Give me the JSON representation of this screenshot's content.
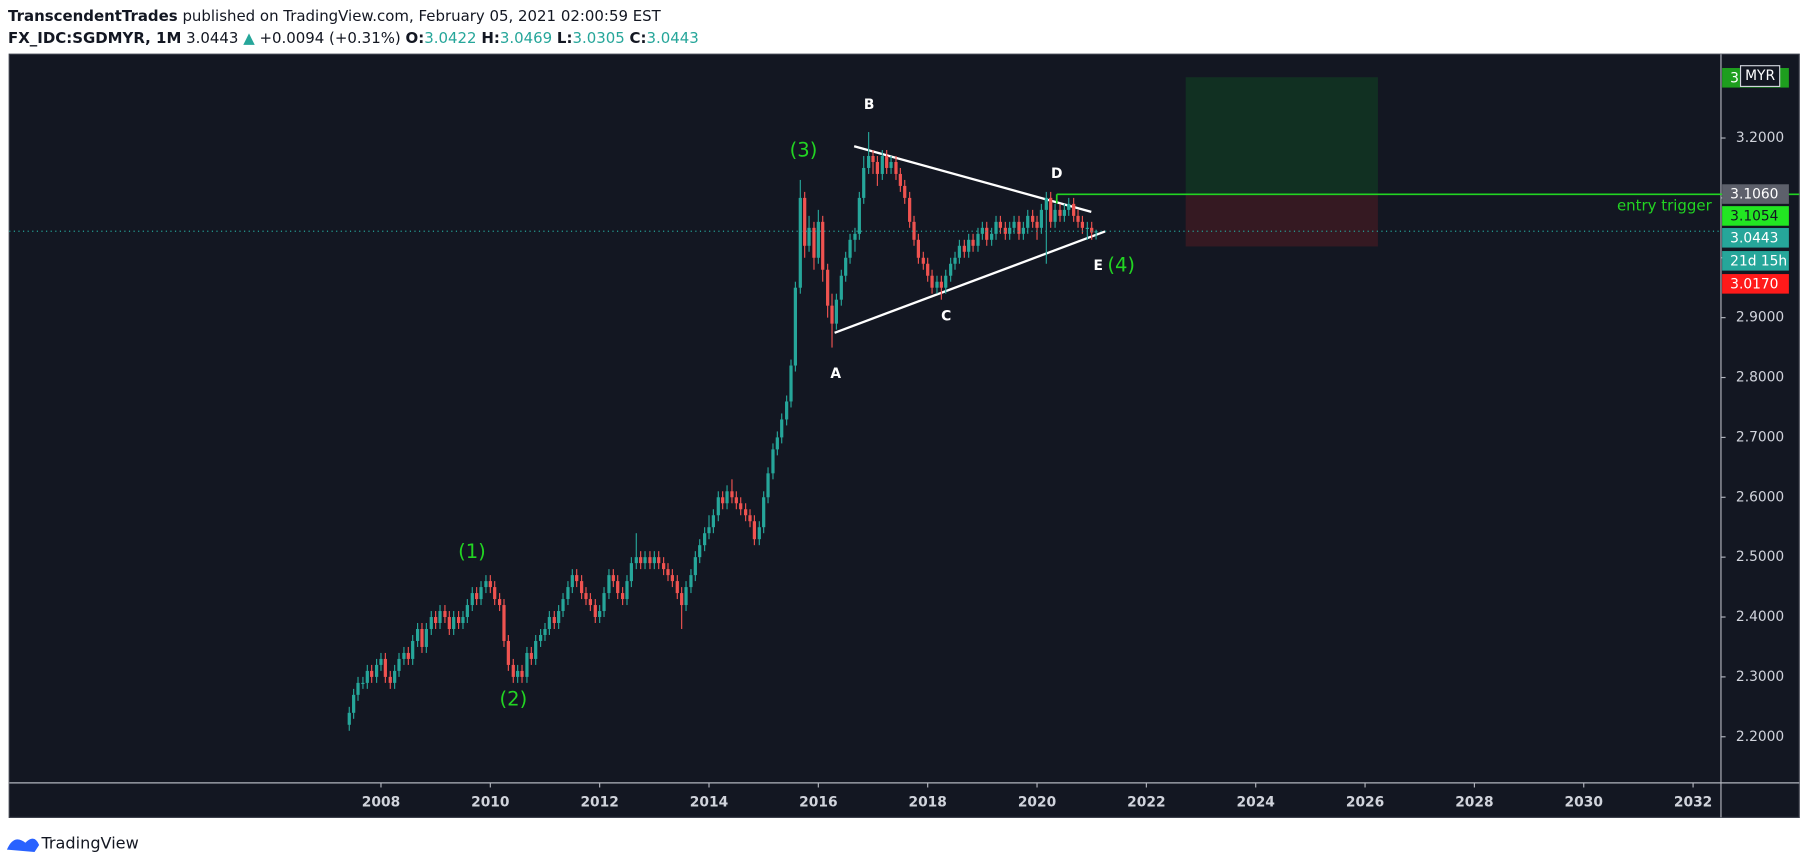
{
  "header": {
    "author": "TranscendentTrades",
    "published": "published on TradingView.com, February 05, 2021 02:00:59 EST",
    "symbol": "FX_IDC:SGDMYR, 1M",
    "price": 3.0443,
    "change": "+0.0094 (+0.31%)",
    "ohlc": [
      {
        "label": "O:",
        "value": 3.0422
      },
      {
        "label": "H:",
        "value": 3.0469
      },
      {
        "label": "L:",
        "value": 3.0305
      },
      {
        "label": "C:",
        "value": 3.0443
      }
    ]
  },
  "chart_data": {
    "type": "candlestick",
    "up_color": "#26a69a",
    "down_color": "#ef5350",
    "x": [
      2007.42,
      2007.5,
      2007.58,
      2007.67,
      2007.75,
      2007.83,
      2007.92,
      2008,
      2008.08,
      2008.17,
      2008.25,
      2008.33,
      2008.42,
      2008.5,
      2008.58,
      2008.67,
      2008.75,
      2008.83,
      2008.92,
      2009,
      2009.08,
      2009.17,
      2009.25,
      2009.33,
      2009.42,
      2009.5,
      2009.58,
      2009.67,
      2009.75,
      2009.83,
      2009.92,
      2010,
      2010.08,
      2010.17,
      2010.25,
      2010.33,
      2010.42,
      2010.5,
      2010.58,
      2010.67,
      2010.75,
      2010.83,
      2010.92,
      2011,
      2011.08,
      2011.17,
      2011.25,
      2011.33,
      2011.42,
      2011.5,
      2011.58,
      2011.67,
      2011.75,
      2011.83,
      2011.92,
      2012,
      2012.08,
      2012.17,
      2012.25,
      2012.33,
      2012.42,
      2012.5,
      2012.58,
      2012.67,
      2012.75,
      2012.83,
      2012.92,
      2013,
      2013.08,
      2013.17,
      2013.25,
      2013.33,
      2013.42,
      2013.5,
      2013.58,
      2013.67,
      2013.75,
      2013.83,
      2013.92,
      2014,
      2014.08,
      2014.17,
      2014.25,
      2014.33,
      2014.42,
      2014.5,
      2014.58,
      2014.67,
      2014.75,
      2014.83,
      2014.92,
      2015,
      2015.08,
      2015.17,
      2015.25,
      2015.33,
      2015.42,
      2015.5,
      2015.58,
      2015.67,
      2015.75,
      2015.83,
      2015.92,
      2016,
      2016.08,
      2016.17,
      2016.25,
      2016.33,
      2016.42,
      2016.5,
      2016.58,
      2016.67,
      2016.75,
      2016.83,
      2016.92,
      2017,
      2017.08,
      2017.17,
      2017.25,
      2017.33,
      2017.42,
      2017.5,
      2017.58,
      2017.67,
      2017.75,
      2017.83,
      2017.92,
      2018,
      2018.08,
      2018.17,
      2018.25,
      2018.33,
      2018.42,
      2018.5,
      2018.58,
      2018.67,
      2018.75,
      2018.83,
      2018.92,
      2019,
      2019.08,
      2019.17,
      2019.25,
      2019.33,
      2019.42,
      2019.5,
      2019.58,
      2019.67,
      2019.75,
      2019.83,
      2019.92,
      2020,
      2020.08,
      2020.17,
      2020.25,
      2020.33,
      2020.42,
      2020.5,
      2020.58,
      2020.67,
      2020.75,
      2020.83,
      2020.92,
      2021,
      2021.08
    ],
    "candles": [
      [
        2.22,
        2.25,
        2.21,
        2.24
      ],
      [
        2.24,
        2.28,
        2.23,
        2.27
      ],
      [
        2.27,
        2.3,
        2.26,
        2.29
      ],
      [
        2.29,
        2.3,
        2.28,
        2.29
      ],
      [
        2.29,
        2.32,
        2.28,
        2.31
      ],
      [
        2.31,
        2.32,
        2.29,
        2.3
      ],
      [
        2.3,
        2.33,
        2.29,
        2.32
      ],
      [
        2.32,
        2.34,
        2.31,
        2.33
      ],
      [
        2.33,
        2.34,
        2.29,
        2.3
      ],
      [
        2.3,
        2.31,
        2.28,
        2.29
      ],
      [
        2.29,
        2.32,
        2.28,
        2.31
      ],
      [
        2.31,
        2.34,
        2.3,
        2.33
      ],
      [
        2.33,
        2.35,
        2.32,
        2.34
      ],
      [
        2.34,
        2.35,
        2.32,
        2.33
      ],
      [
        2.33,
        2.37,
        2.32,
        2.36
      ],
      [
        2.36,
        2.39,
        2.35,
        2.38
      ],
      [
        2.38,
        2.39,
        2.34,
        2.35
      ],
      [
        2.35,
        2.39,
        2.34,
        2.38
      ],
      [
        2.38,
        2.41,
        2.37,
        2.4
      ],
      [
        2.4,
        2.41,
        2.38,
        2.39
      ],
      [
        2.39,
        2.42,
        2.38,
        2.41
      ],
      [
        2.41,
        2.42,
        2.39,
        2.4
      ],
      [
        2.4,
        2.41,
        2.37,
        2.38
      ],
      [
        2.38,
        2.41,
        2.37,
        2.4
      ],
      [
        2.4,
        2.41,
        2.38,
        2.39
      ],
      [
        2.39,
        2.41,
        2.38,
        2.4
      ],
      [
        2.4,
        2.43,
        2.39,
        2.42
      ],
      [
        2.42,
        2.45,
        2.41,
        2.44
      ],
      [
        2.44,
        2.45,
        2.42,
        2.43
      ],
      [
        2.43,
        2.46,
        2.42,
        2.45
      ],
      [
        2.45,
        2.47,
        2.44,
        2.46
      ],
      [
        2.46,
        2.47,
        2.44,
        2.45
      ],
      [
        2.45,
        2.46,
        2.42,
        2.43
      ],
      [
        2.43,
        2.44,
        2.41,
        2.42
      ],
      [
        2.42,
        2.43,
        2.35,
        2.36
      ],
      [
        2.36,
        2.37,
        2.31,
        2.32
      ],
      [
        2.32,
        2.33,
        2.29,
        2.3
      ],
      [
        2.3,
        2.32,
        2.29,
        2.31
      ],
      [
        2.31,
        2.32,
        2.29,
        2.3
      ],
      [
        2.3,
        2.35,
        2.29,
        2.34
      ],
      [
        2.34,
        2.35,
        2.32,
        2.33
      ],
      [
        2.33,
        2.37,
        2.32,
        2.36
      ],
      [
        2.36,
        2.38,
        2.35,
        2.37
      ],
      [
        2.37,
        2.39,
        2.36,
        2.38
      ],
      [
        2.38,
        2.41,
        2.37,
        2.4
      ],
      [
        2.4,
        2.41,
        2.38,
        2.39
      ],
      [
        2.39,
        2.42,
        2.38,
        2.41
      ],
      [
        2.41,
        2.44,
        2.4,
        2.43
      ],
      [
        2.43,
        2.46,
        2.42,
        2.45
      ],
      [
        2.45,
        2.48,
        2.44,
        2.47
      ],
      [
        2.47,
        2.48,
        2.45,
        2.46
      ],
      [
        2.46,
        2.47,
        2.43,
        2.44
      ],
      [
        2.44,
        2.45,
        2.42,
        2.43
      ],
      [
        2.43,
        2.44,
        2.41,
        2.42
      ],
      [
        2.42,
        2.43,
        2.39,
        2.4
      ],
      [
        2.4,
        2.42,
        2.39,
        2.41
      ],
      [
        2.41,
        2.45,
        2.4,
        2.44
      ],
      [
        2.44,
        2.48,
        2.43,
        2.47
      ],
      [
        2.47,
        2.48,
        2.45,
        2.46
      ],
      [
        2.46,
        2.47,
        2.43,
        2.44
      ],
      [
        2.44,
        2.45,
        2.42,
        2.43
      ],
      [
        2.43,
        2.47,
        2.42,
        2.46
      ],
      [
        2.46,
        2.5,
        2.45,
        2.49
      ],
      [
        2.49,
        2.54,
        2.48,
        2.5
      ],
      [
        2.5,
        2.51,
        2.48,
        2.49
      ],
      [
        2.49,
        2.51,
        2.48,
        2.5
      ],
      [
        2.5,
        2.51,
        2.48,
        2.49
      ],
      [
        2.49,
        2.51,
        2.48,
        2.5
      ],
      [
        2.5,
        2.51,
        2.48,
        2.49
      ],
      [
        2.49,
        2.5,
        2.47,
        2.48
      ],
      [
        2.48,
        2.49,
        2.46,
        2.47
      ],
      [
        2.47,
        2.48,
        2.45,
        2.46
      ],
      [
        2.46,
        2.47,
        2.43,
        2.44
      ],
      [
        2.44,
        2.45,
        2.38,
        2.42
      ],
      [
        2.42,
        2.46,
        2.41,
        2.45
      ],
      [
        2.45,
        2.48,
        2.44,
        2.47
      ],
      [
        2.47,
        2.51,
        2.46,
        2.5
      ],
      [
        2.5,
        2.53,
        2.49,
        2.52
      ],
      [
        2.52,
        2.55,
        2.51,
        2.54
      ],
      [
        2.54,
        2.57,
        2.53,
        2.55
      ],
      [
        2.55,
        2.58,
        2.54,
        2.57
      ],
      [
        2.57,
        2.61,
        2.56,
        2.6
      ],
      [
        2.6,
        2.61,
        2.58,
        2.59
      ],
      [
        2.59,
        2.62,
        2.58,
        2.61
      ],
      [
        2.61,
        2.63,
        2.59,
        2.6
      ],
      [
        2.6,
        2.61,
        2.58,
        2.59
      ],
      [
        2.59,
        2.6,
        2.57,
        2.58
      ],
      [
        2.58,
        2.59,
        2.56,
        2.57
      ],
      [
        2.57,
        2.58,
        2.55,
        2.56
      ],
      [
        2.56,
        2.57,
        2.52,
        2.53
      ],
      [
        2.53,
        2.56,
        2.52,
        2.55
      ],
      [
        2.55,
        2.61,
        2.54,
        2.6
      ],
      [
        2.6,
        2.65,
        2.59,
        2.64
      ],
      [
        2.64,
        2.69,
        2.63,
        2.68
      ],
      [
        2.68,
        2.71,
        2.67,
        2.7
      ],
      [
        2.7,
        2.74,
        2.69,
        2.73
      ],
      [
        2.73,
        2.77,
        2.72,
        2.76
      ],
      [
        2.76,
        2.83,
        2.75,
        2.82
      ],
      [
        2.82,
        2.96,
        2.81,
        2.95
      ],
      [
        2.95,
        3.13,
        2.94,
        3.1
      ],
      [
        3.1,
        3.11,
        3.0,
        3.02
      ],
      [
        3.02,
        3.07,
        3.01,
        3.05
      ],
      [
        3.05,
        3.06,
        2.98,
        3.0
      ],
      [
        3.0,
        3.08,
        2.99,
        3.06
      ],
      [
        3.06,
        3.07,
        2.96,
        2.98
      ],
      [
        2.98,
        2.99,
        2.9,
        2.92
      ],
      [
        2.92,
        2.94,
        2.85,
        2.89
      ],
      [
        2.89,
        2.94,
        2.88,
        2.93
      ],
      [
        2.93,
        2.98,
        2.92,
        2.97
      ],
      [
        2.97,
        3.01,
        2.96,
        3.0
      ],
      [
        3.0,
        3.04,
        2.99,
        3.03
      ],
      [
        3.03,
        3.05,
        3.01,
        3.04
      ],
      [
        3.04,
        3.11,
        3.03,
        3.1
      ],
      [
        3.1,
        3.17,
        3.09,
        3.15
      ],
      [
        3.15,
        3.21,
        3.14,
        3.17
      ],
      [
        3.17,
        3.18,
        3.14,
        3.16
      ],
      [
        3.16,
        3.17,
        3.12,
        3.14
      ],
      [
        3.14,
        3.18,
        3.13,
        3.17
      ],
      [
        3.17,
        3.18,
        3.14,
        3.15
      ],
      [
        3.15,
        3.17,
        3.14,
        3.16
      ],
      [
        3.16,
        3.17,
        3.13,
        3.14
      ],
      [
        3.14,
        3.15,
        3.11,
        3.12
      ],
      [
        3.12,
        3.13,
        3.09,
        3.1
      ],
      [
        3.1,
        3.11,
        3.05,
        3.06
      ],
      [
        3.06,
        3.07,
        3.02,
        3.03
      ],
      [
        3.03,
        3.04,
        2.99,
        3.0
      ],
      [
        3.0,
        3.01,
        2.98,
        2.99
      ],
      [
        2.99,
        3.0,
        2.96,
        2.97
      ],
      [
        2.97,
        2.98,
        2.94,
        2.95
      ],
      [
        2.95,
        2.97,
        2.94,
        2.96
      ],
      [
        2.96,
        2.97,
        2.93,
        2.95
      ],
      [
        2.95,
        2.98,
        2.94,
        2.97
      ],
      [
        2.97,
        3.0,
        2.96,
        2.99
      ],
      [
        2.99,
        3.01,
        2.98,
        3.0
      ],
      [
        3.0,
        3.03,
        2.99,
        3.02
      ],
      [
        3.02,
        3.03,
        3.0,
        3.01
      ],
      [
        3.01,
        3.04,
        3.0,
        3.03
      ],
      [
        3.03,
        3.04,
        3.01,
        3.02
      ],
      [
        3.02,
        3.05,
        3.01,
        3.04
      ],
      [
        3.04,
        3.06,
        3.03,
        3.05
      ],
      [
        3.05,
        3.06,
        3.02,
        3.03
      ],
      [
        3.03,
        3.05,
        3.02,
        3.04
      ],
      [
        3.04,
        3.07,
        3.03,
        3.06
      ],
      [
        3.06,
        3.07,
        3.04,
        3.05
      ],
      [
        3.05,
        3.06,
        3.03,
        3.04
      ],
      [
        3.04,
        3.06,
        3.03,
        3.05
      ],
      [
        3.05,
        3.07,
        3.04,
        3.06
      ],
      [
        3.06,
        3.07,
        3.03,
        3.04
      ],
      [
        3.04,
        3.06,
        3.03,
        3.05
      ],
      [
        3.05,
        3.08,
        3.04,
        3.07
      ],
      [
        3.07,
        3.08,
        3.05,
        3.06
      ],
      [
        3.06,
        3.07,
        3.03,
        3.05
      ],
      [
        3.05,
        3.09,
        3.04,
        3.08
      ],
      [
        3.08,
        3.11,
        2.99,
        3.1
      ],
      [
        3.1,
        3.11,
        3.05,
        3.06
      ],
      [
        3.06,
        3.09,
        3.05,
        3.08
      ],
      [
        3.08,
        3.09,
        3.06,
        3.07
      ],
      [
        3.07,
        3.09,
        3.06,
        3.08
      ],
      [
        3.08,
        3.1,
        3.07,
        3.09
      ],
      [
        3.09,
        3.1,
        3.06,
        3.07
      ],
      [
        3.07,
        3.08,
        3.05,
        3.06
      ],
      [
        3.06,
        3.07,
        3.04,
        3.05
      ],
      [
        3.05,
        3.06,
        3.03,
        3.05
      ],
      [
        3.05,
        3.06,
        3.03,
        3.0422
      ],
      [
        3.0422,
        3.0469,
        3.0305,
        3.0443
      ]
    ],
    "xlim": [
      2001.2,
      2032.51
    ],
    "xticks": [
      2008,
      2010,
      2012,
      2014,
      2016,
      2018,
      2020,
      2022,
      2024,
      2026,
      2028,
      2030,
      2032
    ],
    "ylim": [
      2.123,
      3.34
    ],
    "yticks": [
      {
        "value": 2.2,
        "label": "2.2000"
      },
      {
        "value": 2.3,
        "label": "2.3000"
      },
      {
        "value": 2.4,
        "label": "2.4000"
      },
      {
        "value": 2.5,
        "label": "2.5000"
      },
      {
        "value": 2.6,
        "label": "2.6000"
      },
      {
        "value": 2.7,
        "label": "2.7000"
      },
      {
        "value": 2.8,
        "label": "2.8000"
      },
      {
        "value": 2.9,
        "label": "2.9000"
      },
      {
        "value": 3.0,
        "label": "3.0000"
      },
      {
        "value": 3.1,
        "label": "3.1000"
      },
      {
        "value": 3.2,
        "label": "3.2000"
      }
    ],
    "grid": false,
    "annotations": [
      {
        "text": "(1)",
        "color": "#22d422"
      },
      {
        "text": "(2)",
        "color": "#22d422"
      },
      {
        "text": "(3)",
        "color": "#22d422"
      },
      {
        "text": "(4)",
        "color": "#22d422"
      },
      {
        "text": "A",
        "color": "#ffffff"
      },
      {
        "text": "B",
        "color": "#ffffff"
      },
      {
        "text": "C",
        "color": "#ffffff"
      },
      {
        "text": "D",
        "color": "#ffffff"
      },
      {
        "text": "E",
        "color": "#ffffff"
      }
    ],
    "entry_trigger": {
      "label": "entry trigger",
      "price": {
        "value": 3.106,
        "label": "3.1060"
      },
      "color": "#22d422"
    },
    "price_labels": [
      {
        "value": 3.302,
        "label": "3",
        "color": "#1e9e1e"
      },
      {
        "value": 3.1054,
        "label": "3.1054",
        "color": "#22e622"
      },
      {
        "value": 3.0443,
        "label": "3.0443",
        "color": "#26a69a"
      },
      {
        "value": 3.017,
        "label": "3.0170",
        "color": "#ff1a1a"
      }
    ],
    "currency": "MYR",
    "countdown": "21d 15h"
  },
  "footer": {
    "brand": "TradingView"
  }
}
